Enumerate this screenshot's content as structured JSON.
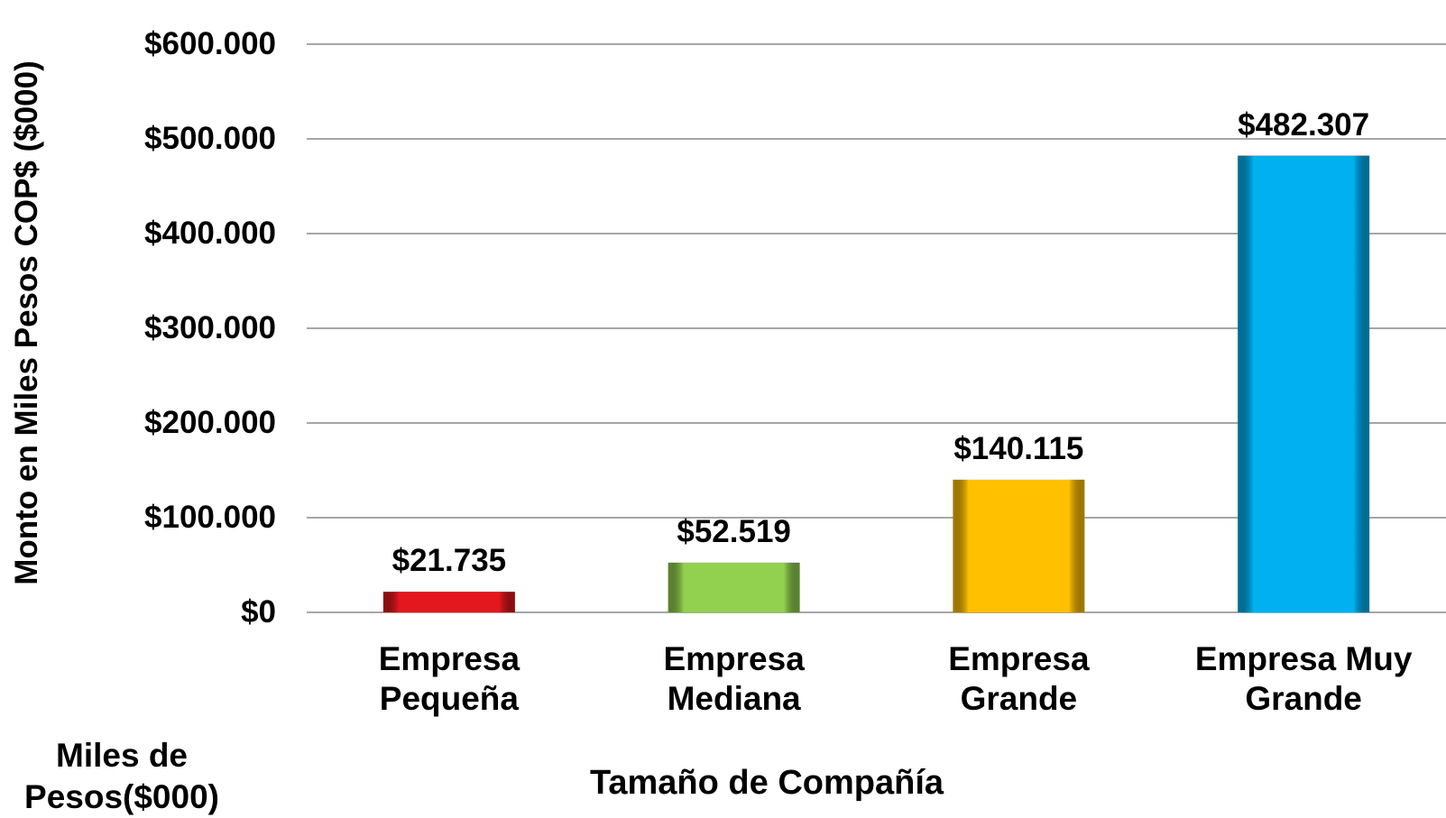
{
  "chart_data": {
    "type": "bar",
    "y_label": "Monto en Miles Pesos COP$ ($000)",
    "x_label": "Tamaño de Compañía",
    "note": "Miles de\nPesos($000)",
    "categories": [
      "Empresa\nPequeña",
      "Empresa\nMediana",
      "Empresa\nGrande",
      "Empresa Muy\nGrande"
    ],
    "values": [
      21735,
      52519,
      140115,
      482307
    ],
    "value_labels": [
      "$21.735",
      "$52.519",
      "$140.115",
      "$482.307"
    ],
    "colors": [
      "#e3171d",
      "#92d050",
      "#ffc000",
      "#00b0f0"
    ],
    "ylim": [
      0,
      600000
    ],
    "yticks": [
      {
        "value": 0,
        "label": "$0"
      },
      {
        "value": 100000,
        "label": "$100.000"
      },
      {
        "value": 200000,
        "label": "$200.000"
      },
      {
        "value": 300000,
        "label": "$300.000"
      },
      {
        "value": 400000,
        "label": "$400.000"
      },
      {
        "value": 500000,
        "label": "$500.000"
      },
      {
        "value": 600000,
        "label": "$600.000"
      }
    ],
    "grid": true
  }
}
